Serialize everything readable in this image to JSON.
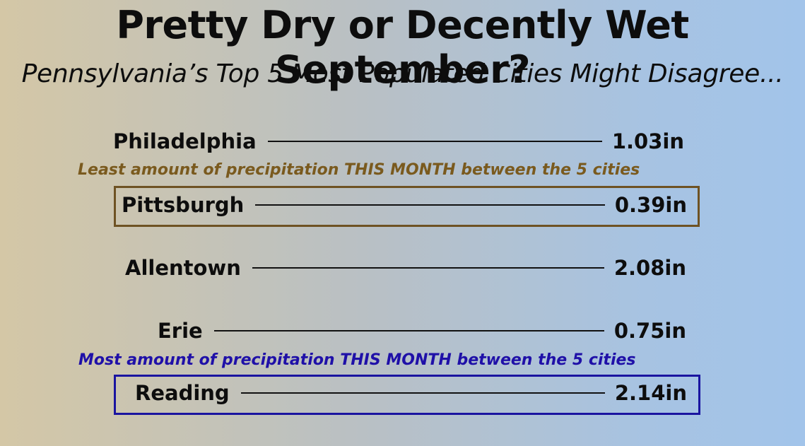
{
  "title": "Pretty Dry or Decently Wet September?",
  "subtitle": "Pennsylvania’s Top 5 Most Populated Cities Might Disagree...",
  "colors": {
    "least_note": "#7a5a1e",
    "least_box": "#6e5223",
    "most_note": "#1f10a8",
    "most_box": "#1a14a0"
  },
  "notes": {
    "least": "Least amount of precipitation THIS MONTH between the 5 cities",
    "most": "Most amount of precipitation THIS MONTH between the 5 cities"
  },
  "cities": [
    {
      "name": "Philadelphia",
      "value": "1.03in"
    },
    {
      "name": "Pittsburgh",
      "value": "0.39in"
    },
    {
      "name": "Allentown",
      "value": "2.08in"
    },
    {
      "name": "Erie",
      "value": "0.75in"
    },
    {
      "name": "Reading",
      "value": "2.14in"
    }
  ]
}
